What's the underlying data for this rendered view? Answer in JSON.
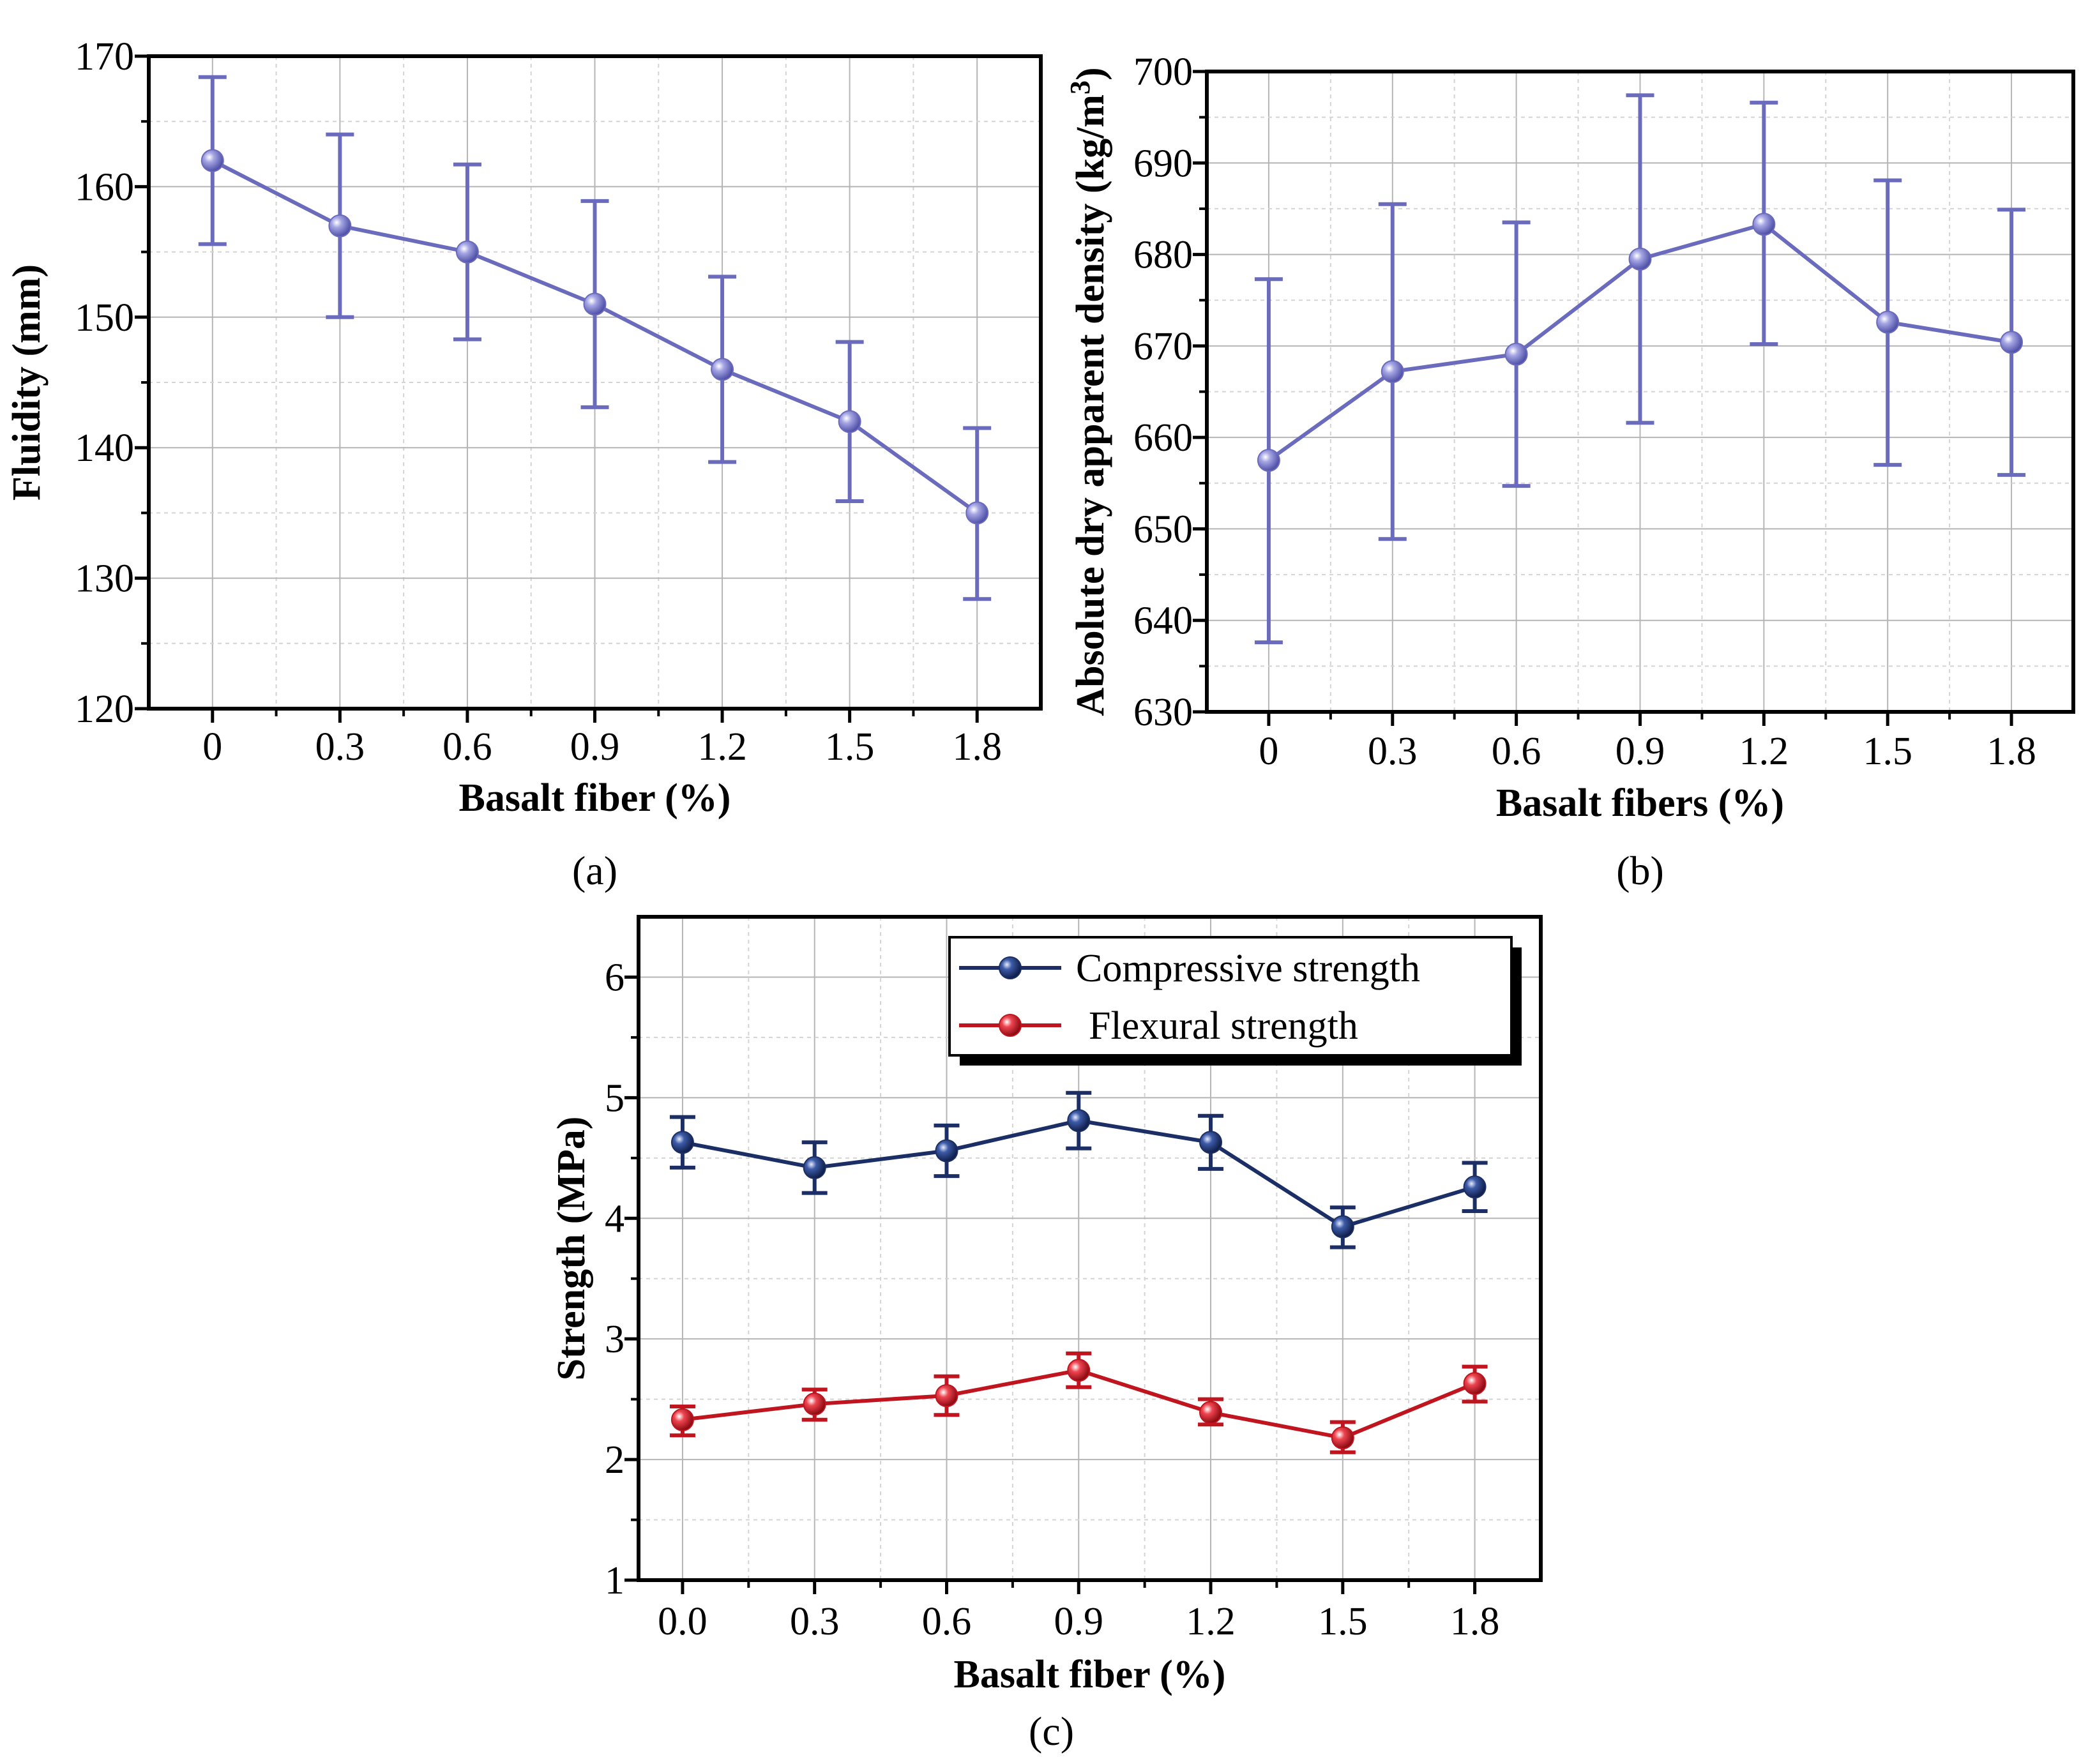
{
  "chart_data": [
    {
      "id": "a",
      "type": "line",
      "panel_label": "(a)",
      "xlabel": "Basalt fiber (%)",
      "ylabel": "Fluidity (mm)",
      "x_tick_labels": [
        "0",
        "0.3",
        "0.6",
        "0.9",
        "1.2",
        "1.5",
        "1.8"
      ],
      "y_tick_labels": [
        "120",
        "130",
        "140",
        "150",
        "160",
        "170"
      ],
      "ylim": [
        120,
        170
      ],
      "grid": true,
      "colors": {
        "line": "#6b6bbe",
        "marker": "#8a8ad6"
      },
      "series": [
        {
          "name": "Fluidity",
          "x": [
            0,
            0.3,
            0.6,
            0.9,
            1.2,
            1.5,
            1.8
          ],
          "y": [
            162,
            157,
            155,
            151,
            146,
            142,
            135
          ],
          "err_low": [
            155.6,
            150,
            148.3,
            143.1,
            138.9,
            135.9,
            128.4
          ],
          "err_high": [
            168.4,
            164,
            161.7,
            158.9,
            153.1,
            148.1,
            141.5
          ]
        }
      ]
    },
    {
      "id": "b",
      "type": "line",
      "panel_label": "(b)",
      "xlabel": "Basalt fibers (%)",
      "ylabel": "Absolute dry apparent density (kg/m",
      "ylabel_superscript": "3",
      "ylabel_close": ")",
      "x_tick_labels": [
        "0",
        "0.3",
        "0.6",
        "0.9",
        "1.2",
        "1.5",
        "1.8"
      ],
      "y_tick_labels": [
        "630",
        "640",
        "650",
        "660",
        "670",
        "680",
        "690",
        "700"
      ],
      "ylim": [
        630,
        700
      ],
      "grid": true,
      "colors": {
        "line": "#6b6bbe",
        "marker": "#8a8ad6"
      },
      "series": [
        {
          "name": "Density",
          "x": [
            0,
            0.3,
            0.6,
            0.9,
            1.2,
            1.5,
            1.8
          ],
          "y": [
            657.5,
            667.2,
            669.1,
            679.5,
            683.3,
            672.6,
            670.4
          ],
          "err_low": [
            637.6,
            648.9,
            654.7,
            661.6,
            670.2,
            657.0,
            655.9
          ],
          "err_high": [
            677.3,
            685.5,
            683.5,
            697.4,
            696.6,
            688.1,
            684.9
          ]
        }
      ]
    },
    {
      "id": "c",
      "type": "line",
      "panel_label": "(c)",
      "xlabel": "Basalt fiber (%)",
      "ylabel": "Strength (MPa)",
      "x_tick_labels": [
        "0.0",
        "0.3",
        "0.6",
        "0.9",
        "1.2",
        "1.5",
        "1.8"
      ],
      "y_tick_labels": [
        "1",
        "2",
        "3",
        "4",
        "5",
        "6"
      ],
      "ylim": [
        1,
        6.5
      ],
      "grid": true,
      "legend_position": "top-right",
      "series": [
        {
          "name": "Compressive strength",
          "color": "#1b2f66",
          "marker": "#2a468c",
          "x": [
            0,
            0.3,
            0.6,
            0.9,
            1.2,
            1.5,
            1.8
          ],
          "y": [
            4.63,
            4.42,
            4.56,
            4.81,
            4.63,
            3.93,
            4.26
          ],
          "err_low": [
            4.42,
            4.21,
            4.35,
            4.58,
            4.41,
            3.76,
            4.06
          ],
          "err_high": [
            4.84,
            4.63,
            4.77,
            5.04,
            4.85,
            4.09,
            4.46
          ]
        },
        {
          "name": "Flexural strength",
          "color": "#c0141e",
          "marker": "#d8202a",
          "x": [
            0,
            0.3,
            0.6,
            0.9,
            1.2,
            1.5,
            1.8
          ],
          "y": [
            2.33,
            2.46,
            2.53,
            2.74,
            2.39,
            2.18,
            2.63
          ],
          "err_low": [
            2.2,
            2.33,
            2.37,
            2.6,
            2.29,
            2.06,
            2.48
          ],
          "err_high": [
            2.44,
            2.58,
            2.69,
            2.88,
            2.5,
            2.31,
            2.77
          ]
        }
      ]
    }
  ]
}
